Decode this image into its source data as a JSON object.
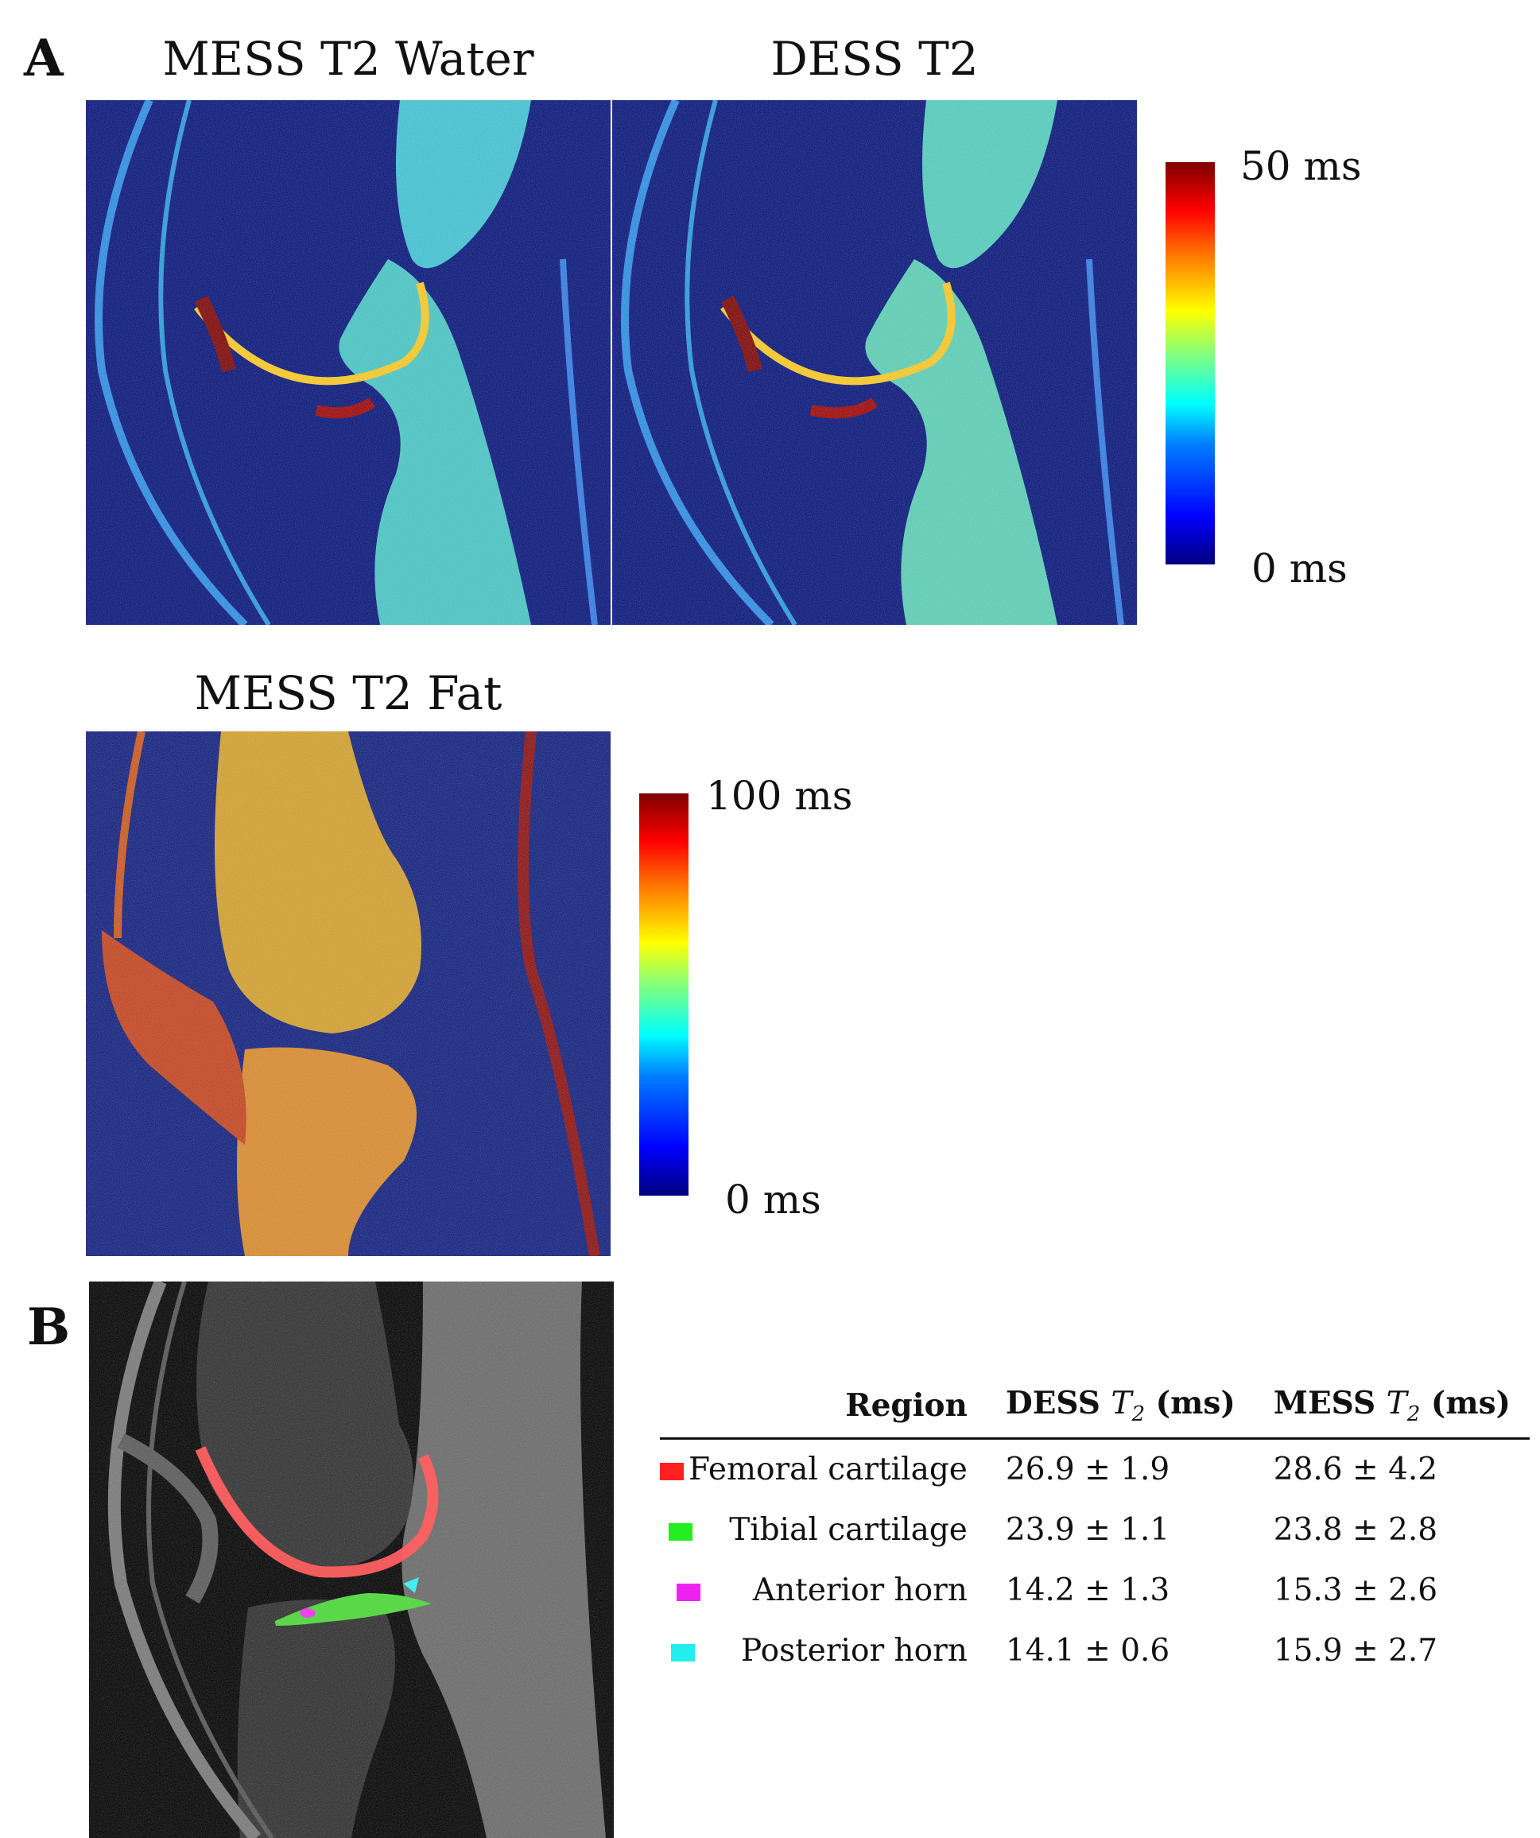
{
  "panel_a": {
    "letter": "A",
    "maps": [
      {
        "title": "MESS T2 Water"
      },
      {
        "title": "DESS T2"
      },
      {
        "title": "MESS T2 Fat"
      }
    ],
    "colorbar_top": {
      "max_label": "50 ms",
      "min_label": "0 ms"
    },
    "colorbar_bottom": {
      "max_label": "100 ms",
      "min_label": "0 ms"
    },
    "colors": {
      "background": "#01107a",
      "high": "#7f0000",
      "mid": "#00d0c8"
    }
  },
  "panel_b": {
    "letter": "B",
    "table": {
      "headers": {
        "region": "Region",
        "dess": "DESS",
        "mess": "MESS",
        "t2_symbol": "T",
        "t2_sub": "2",
        "unit": "(ms)"
      },
      "rows": [
        {
          "region": "Femoral cartilage",
          "color": "#ff2020",
          "dess": "26.9 ± 1.9",
          "mess": "28.6 ± 4.2"
        },
        {
          "region": "Tibial cartilage",
          "color": "#22ee22",
          "dess": "23.9 ± 1.1",
          "mess": "23.8 ± 2.8"
        },
        {
          "region": "Anterior horn",
          "color": "#ee22ee",
          "dess": "14.2 ± 1.3",
          "mess": "15.3 ± 2.6"
        },
        {
          "region": "Posterior horn",
          "color": "#22eeee",
          "dess": "14.1 ± 0.6",
          "mess": "15.9 ± 2.7"
        }
      ]
    }
  }
}
